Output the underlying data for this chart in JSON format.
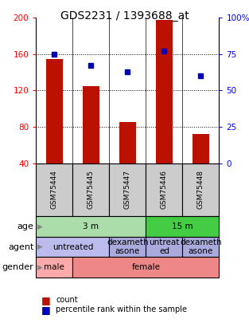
{
  "title": "GDS2231 / 1393688_at",
  "samples": [
    "GSM75444",
    "GSM75445",
    "GSM75447",
    "GSM75446",
    "GSM75448"
  ],
  "bar_values": [
    155,
    125,
    85,
    198,
    72
  ],
  "percentile_values": [
    75,
    67,
    63,
    77,
    60
  ],
  "ylim_left": [
    40,
    200
  ],
  "ylim_right": [
    0,
    100
  ],
  "bar_color": "#bb1100",
  "dot_color": "#0000bb",
  "age_groups": [
    {
      "label": "3 m",
      "start": 0,
      "end": 3,
      "color": "#aaddaa"
    },
    {
      "label": "15 m",
      "start": 3,
      "end": 5,
      "color": "#44cc44"
    }
  ],
  "agent_groups": [
    {
      "label": "untreated",
      "start": 0,
      "end": 2,
      "color": "#bbbbee"
    },
    {
      "label": "dexameth\nasone",
      "start": 2,
      "end": 3,
      "color": "#aaaadd"
    },
    {
      "label": "untreat\ned",
      "start": 3,
      "end": 4,
      "color": "#aaaadd"
    },
    {
      "label": "dexameth\nasone",
      "start": 4,
      "end": 5,
      "color": "#aaaadd"
    }
  ],
  "gender_groups": [
    {
      "label": "male",
      "start": 0,
      "end": 1,
      "color": "#ffaaaa"
    },
    {
      "label": "female",
      "start": 1,
      "end": 5,
      "color": "#ee8888"
    }
  ],
  "row_labels": [
    "age",
    "agent",
    "gender"
  ],
  "title_fontsize": 10,
  "sample_label_fontsize": 6.5,
  "annotation_fontsize": 7.5,
  "row_label_fontsize": 8,
  "legend_fontsize": 7
}
